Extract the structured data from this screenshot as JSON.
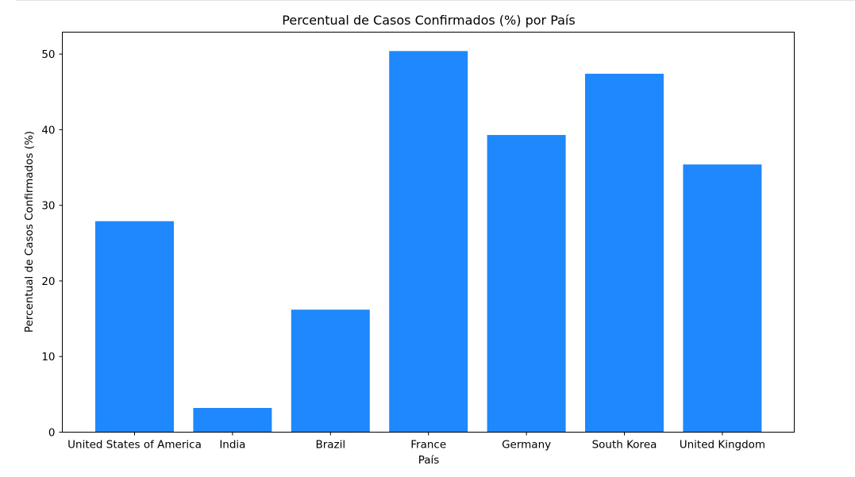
{
  "chart_data": {
    "type": "bar",
    "title": "Percentual de Casos Confirmados (%) por País",
    "xlabel": "País",
    "ylabel": "Percentual de Casos Confirmados (%)",
    "categories": [
      "United States of America",
      "India",
      "Brazil",
      "France",
      "Germany",
      "South Korea",
      "United Kingdom"
    ],
    "values": [
      27.9,
      3.2,
      16.2,
      50.4,
      39.3,
      47.4,
      35.4
    ],
    "ylim": [
      0,
      52.9
    ],
    "yticks": [
      0,
      10,
      20,
      30,
      40,
      50
    ],
    "bar_color": "#1e88fc",
    "grid": false,
    "legend": "none"
  }
}
